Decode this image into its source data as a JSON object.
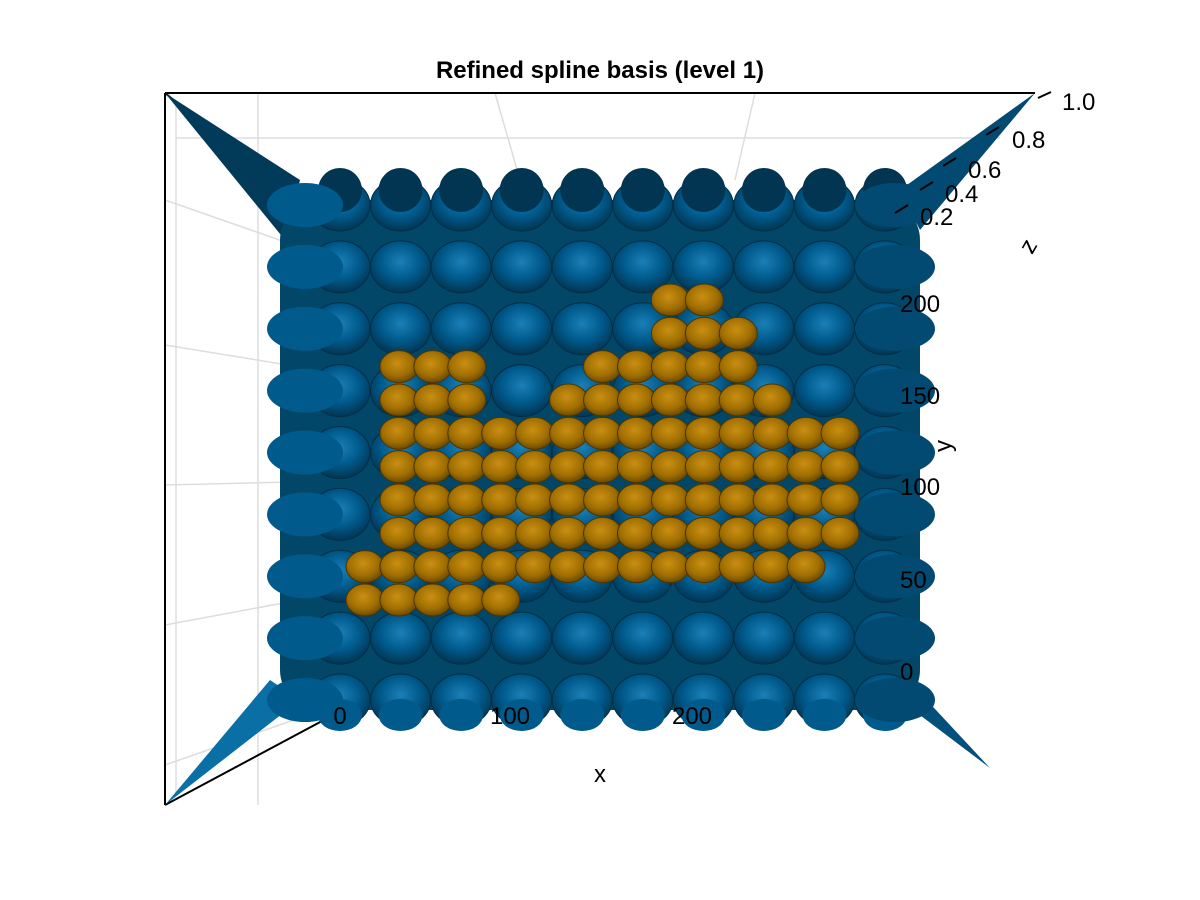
{
  "chart_data": {
    "type": "surface3d",
    "title": "Refined spline basis (level 1)",
    "xlabel": "x",
    "ylabel": "y",
    "zlabel": "z",
    "xlim": [
      -20,
      300
    ],
    "ylim": [
      -20,
      220
    ],
    "zlim": [
      0,
      1
    ],
    "x_ticks": [
      "0",
      "100",
      "200"
    ],
    "y_ticks": [
      "0",
      "50",
      "100",
      "150",
      "200"
    ],
    "z_ticks": [
      "0.2",
      "0.4",
      "0.6",
      "0.8",
      "1.0"
    ],
    "grid": true,
    "view": "top-down",
    "series": [
      {
        "color": "#005a8c",
        "grid_columns": 10,
        "grid_rows": 9
      },
      {
        "color": "#a06e00",
        "grid_columns": 14,
        "grid_rows": 10
      }
    ]
  }
}
